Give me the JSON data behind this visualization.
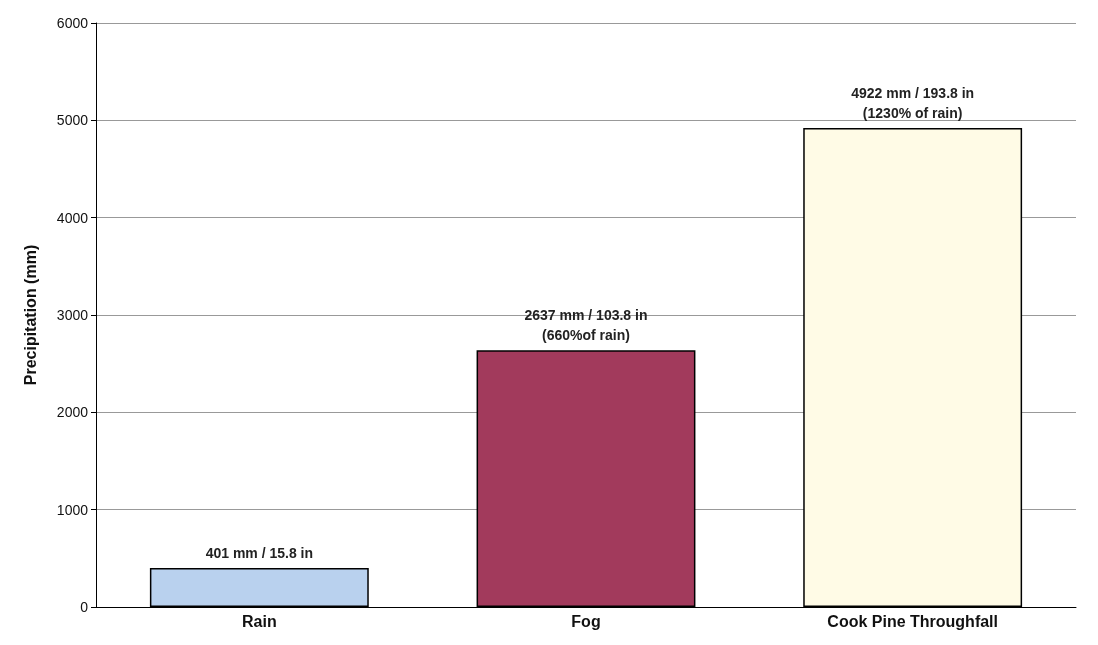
{
  "chart_data": {
    "type": "bar",
    "ylabel": "Precipitation (mm)",
    "categories": [
      "Rain",
      "Fog",
      "Cook Pine Throughfall"
    ],
    "values": [
      401,
      2637,
      4922
    ],
    "colors": [
      "#b9d1ee",
      "#a23a5c",
      "#fffbe6"
    ],
    "value_labels": [
      "401 mm / 15.8 in",
      "2637 mm / 103.8 in\n(660%of rain)",
      "4922 mm / 193.8 in\n(1230% of rain)"
    ],
    "ylim": [
      0,
      6000
    ],
    "yticks": [
      0,
      1000,
      2000,
      3000,
      4000,
      5000,
      6000
    ],
    "grid": "y"
  }
}
